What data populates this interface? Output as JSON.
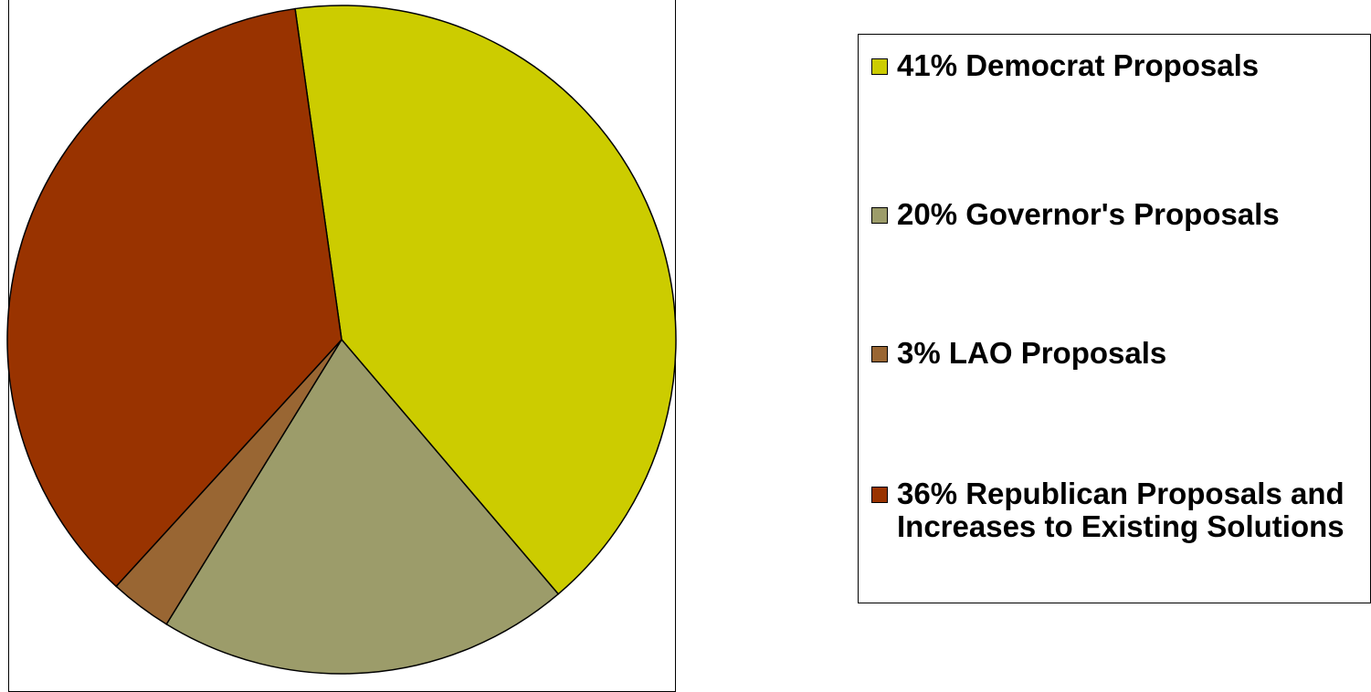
{
  "chart_data": {
    "type": "pie",
    "slices": [
      {
        "label": "41% Democrat Proposals",
        "value": 41,
        "color": "#CCCC00"
      },
      {
        "label": "20% Governor's Proposals",
        "value": 20,
        "color": "#9C9C6A"
      },
      {
        "label": "3% LAO Proposals",
        "value": 3,
        "color": "#996633"
      },
      {
        "label": "36% Republican Proposals and Increases to Existing Solutions",
        "value": 36,
        "color": "#993300"
      }
    ],
    "start_angle_deg": -8,
    "direction": "clockwise",
    "legend_position": "right"
  }
}
